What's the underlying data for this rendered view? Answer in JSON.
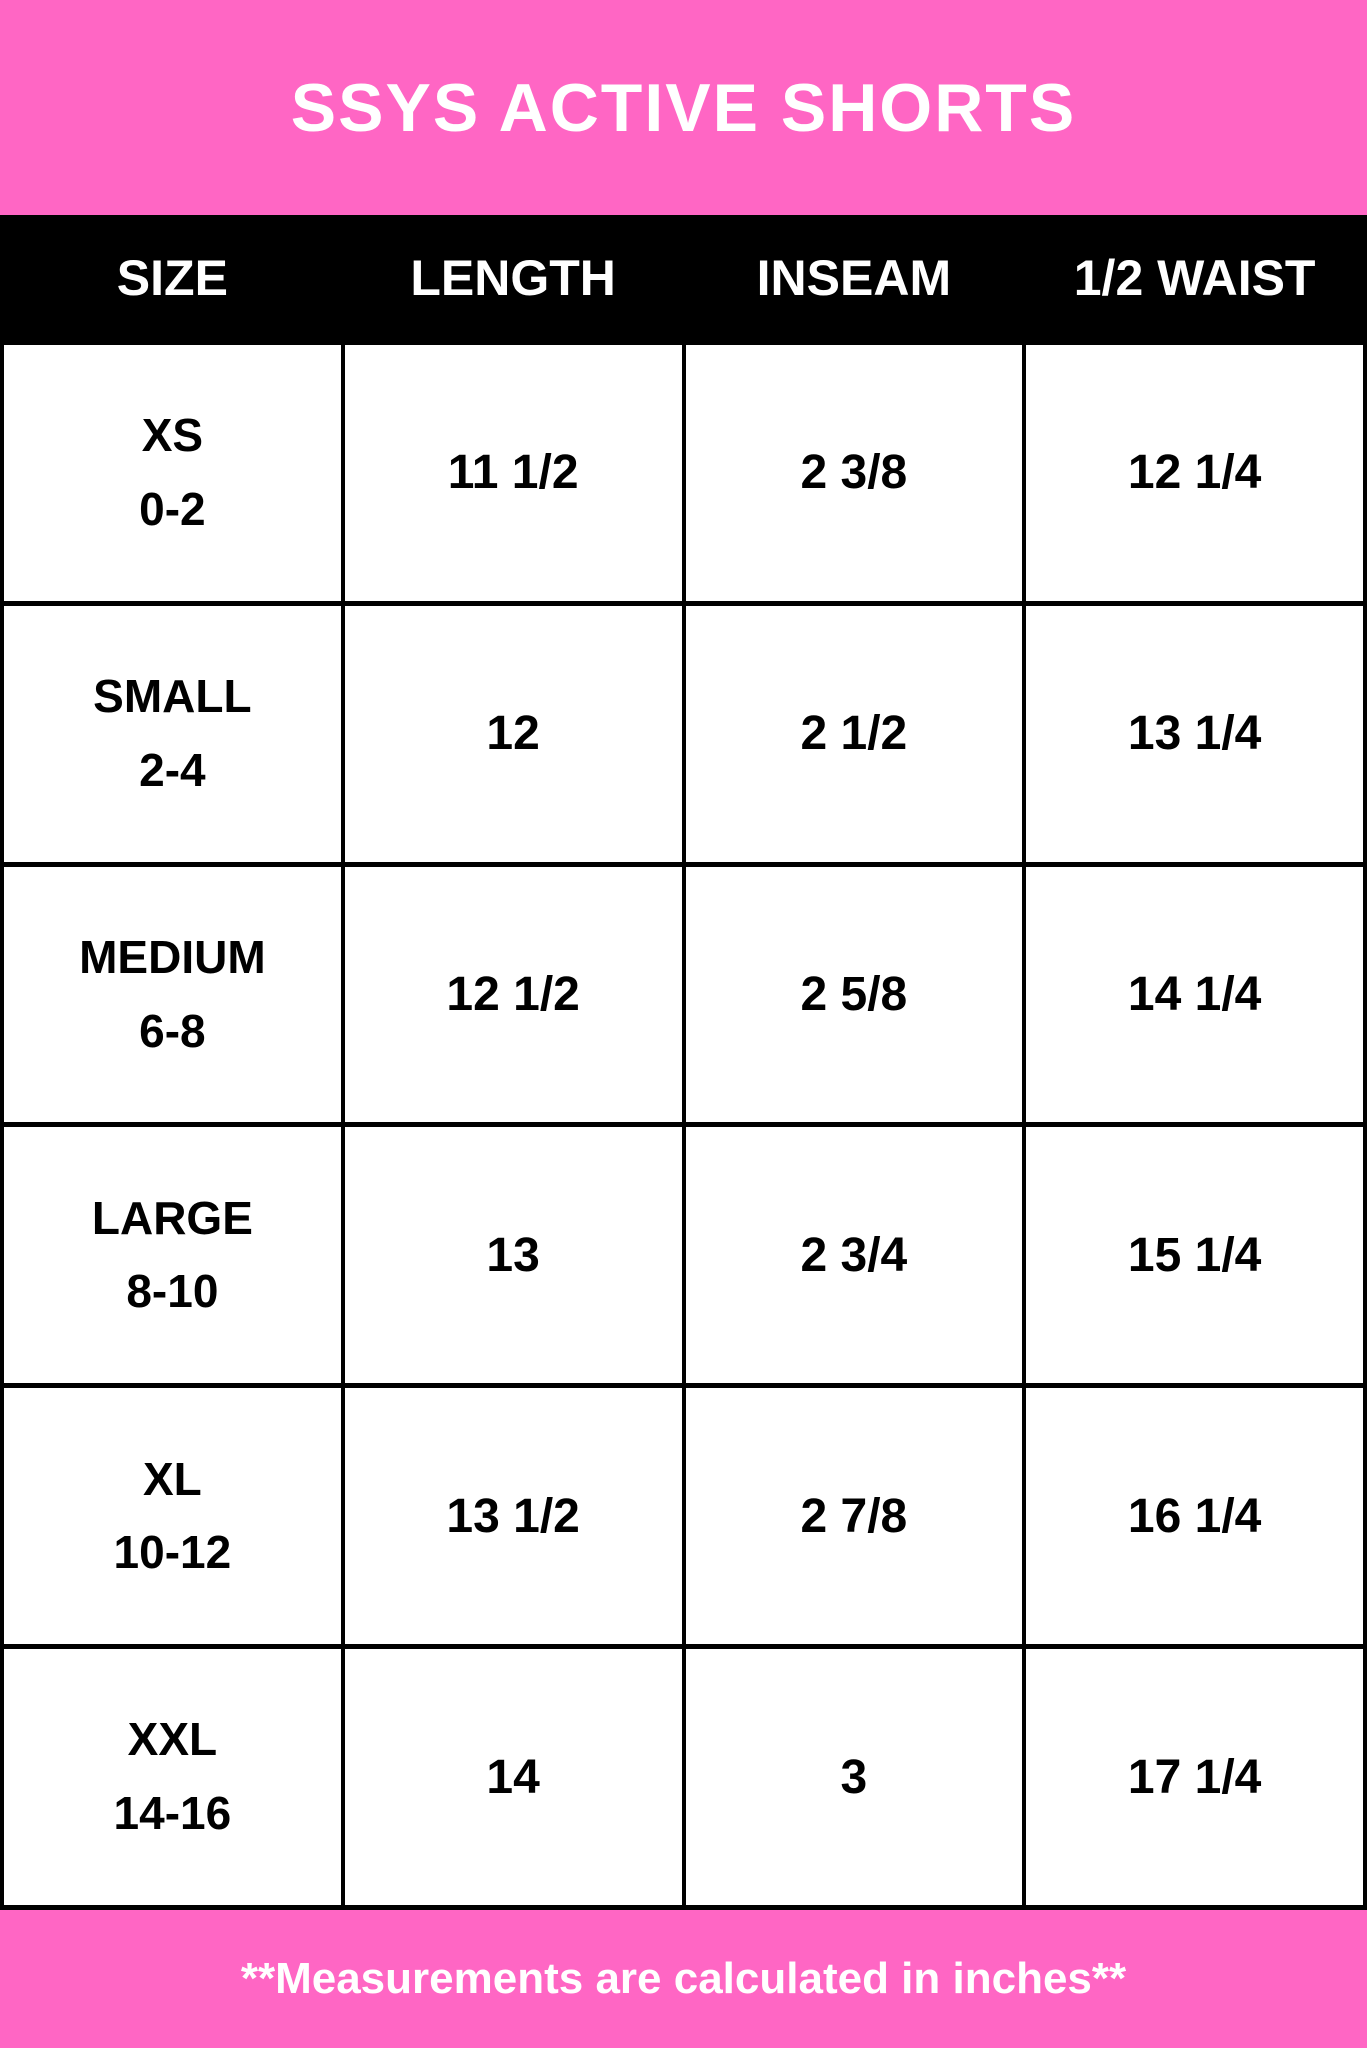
{
  "colors": {
    "banner_pink": "#ff66c4",
    "header_black": "#000000",
    "cell_white": "#ffffff",
    "title_text": "#ffffff",
    "cell_text": "#000000"
  },
  "title": "SSYS ACTIVE SHORTS",
  "table": {
    "columns": [
      "SIZE",
      "LENGTH",
      "INSEAM",
      "1/2 WAIST"
    ],
    "rows": [
      {
        "size": "XS",
        "range": "0-2",
        "length": "11 1/2",
        "inseam": "2 3/8",
        "half_waist": "12 1/4"
      },
      {
        "size": "SMALL",
        "range": "2-4",
        "length": "12",
        "inseam": "2 1/2",
        "half_waist": "13 1/4"
      },
      {
        "size": "MEDIUM",
        "range": "6-8",
        "length": "12 1/2",
        "inseam": "2 5/8",
        "half_waist": "14 1/4"
      },
      {
        "size": "LARGE",
        "range": "8-10",
        "length": "13",
        "inseam": "2 3/4",
        "half_waist": "15 1/4"
      },
      {
        "size": "XL",
        "range": "10-12",
        "length": "13 1/2",
        "inseam": "2 7/8",
        "half_waist": "16 1/4"
      },
      {
        "size": "XXL",
        "range": "14-16",
        "length": "14",
        "inseam": "3",
        "half_waist": "17 1/4"
      }
    ]
  },
  "footer": {
    "note": "**Measurements are calculated in inches**"
  },
  "chart_data": {
    "type": "table",
    "title": "SSYS ACTIVE SHORTS",
    "columns": [
      "SIZE",
      "LENGTH",
      "INSEAM",
      "1/2 WAIST"
    ],
    "rows": [
      [
        "XS 0-2",
        "11 1/2",
        "2 3/8",
        "12 1/4"
      ],
      [
        "SMALL 2-4",
        "12",
        "2 1/2",
        "13 1/4"
      ],
      [
        "MEDIUM 6-8",
        "12 1/2",
        "2 5/8",
        "14 1/4"
      ],
      [
        "LARGE 8-10",
        "13",
        "2 3/4",
        "15 1/4"
      ],
      [
        "XL 10-12",
        "13 1/2",
        "2 7/8",
        "16 1/4"
      ],
      [
        "XXL 14-16",
        "14",
        "3",
        "17 1/4"
      ]
    ],
    "units": "inches",
    "note": "**Measurements are calculated in inches**"
  }
}
